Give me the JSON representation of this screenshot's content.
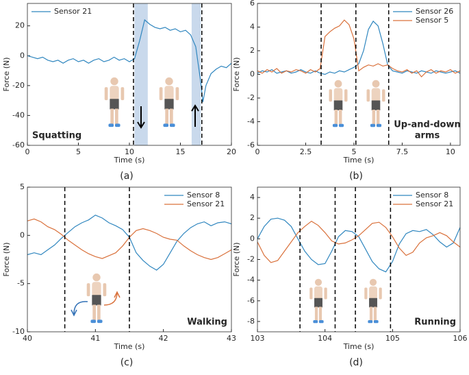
{
  "chart_data": [
    {
      "type": "line",
      "panel_label": "(a)",
      "xlabel": "Time (s)",
      "ylabel": "Force (N)",
      "annotation": [
        "Squatting"
      ],
      "annotation_position": "lower left",
      "legend": "upper left",
      "xlim": [
        0,
        20
      ],
      "xticks": [
        0,
        5,
        10,
        15,
        20
      ],
      "ylim": [
        -60,
        35
      ],
      "yticks": [
        -60,
        -40,
        -20,
        0,
        20
      ],
      "events": [
        10.4,
        17.1
      ],
      "shaded": [
        [
          10.5,
          11.8
        ],
        [
          16.1,
          17.0
        ]
      ],
      "x": [
        0,
        0.5,
        1,
        1.5,
        2,
        2.5,
        3,
        3.5,
        4,
        4.5,
        5,
        5.5,
        6,
        6.5,
        7,
        7.5,
        8,
        8.5,
        9,
        9.5,
        10,
        10.5,
        11,
        11.5,
        12,
        12.5,
        13,
        13.5,
        14,
        14.5,
        15,
        15.5,
        16,
        16.5,
        17,
        17.2,
        17.5,
        18,
        18.5,
        19,
        19.5,
        20
      ],
      "series": [
        {
          "name": "Sensor 21",
          "color": "#2f86bf",
          "values": [
            0,
            -1,
            -2,
            -1,
            -3,
            -4,
            -3,
            -5,
            -3,
            -2,
            -4,
            -3,
            -5,
            -3,
            -2,
            -4,
            -3,
            -1,
            -3,
            -2,
            -4,
            -2,
            10,
            24,
            21,
            19,
            18,
            19,
            17,
            18,
            16,
            17,
            14,
            6,
            -18,
            -31,
            -20,
            -12,
            -9,
            -7,
            -8,
            -5
          ]
        }
      ]
    },
    {
      "type": "line",
      "panel_label": "(b)",
      "xlabel": "Time (s)",
      "ylabel": "Force (N)",
      "annotation": [
        "Up-and-down",
        "arms"
      ],
      "annotation_position": "lower right",
      "legend": "upper right",
      "xlim": [
        0,
        10.5
      ],
      "xticks": [
        0,
        2.5,
        5,
        7.5,
        10
      ],
      "ylim": [
        -6,
        6
      ],
      "yticks": [
        -6,
        -4,
        -2,
        0,
        2,
        4,
        6
      ],
      "events": [
        3.3,
        5.1,
        6.8
      ],
      "shaded": [],
      "x": [
        0,
        0.25,
        0.5,
        0.75,
        1,
        1.25,
        1.5,
        1.75,
        2,
        2.25,
        2.5,
        2.75,
        3,
        3.25,
        3.5,
        3.75,
        4,
        4.25,
        4.5,
        4.75,
        5,
        5.25,
        5.5,
        5.75,
        6,
        6.25,
        6.5,
        6.75,
        7,
        7.25,
        7.5,
        7.75,
        8,
        8.25,
        8.5,
        8.75,
        9,
        9.25,
        9.5,
        9.75,
        10,
        10.25,
        10.5
      ],
      "series": [
        {
          "name": "Sensor 26",
          "color": "#2f86bf",
          "values": [
            0.1,
            0.3,
            0.2,
            0.4,
            0.1,
            0.2,
            0.3,
            0.1,
            0.2,
            0.4,
            0.2,
            0.1,
            0.3,
            0.1,
            0.0,
            0.2,
            0.1,
            0.3,
            0.2,
            0.4,
            0.6,
            0.9,
            2.0,
            3.8,
            4.5,
            4.1,
            2.6,
            0.8,
            0.3,
            0.2,
            0.1,
            0.3,
            0.2,
            0.1,
            0.3,
            0.2,
            0.1,
            0.3,
            0.2,
            0.1,
            0.2,
            0.3,
            0.1
          ]
        },
        {
          "name": "Sensor 5",
          "color": "#d9703a",
          "values": [
            0.3,
            0.1,
            0.4,
            0.2,
            0.5,
            0.1,
            0.3,
            0.2,
            0.4,
            0.3,
            0.1,
            0.4,
            0.2,
            0.5,
            3.2,
            3.6,
            3.9,
            4.1,
            4.6,
            4.2,
            3.0,
            0.3,
            0.6,
            0.8,
            0.7,
            0.9,
            0.7,
            0.8,
            0.5,
            0.3,
            0.2,
            0.4,
            0.1,
            0.3,
            -0.2,
            0.2,
            0.4,
            0.1,
            0.3,
            0.2,
            0.4,
            0.1,
            0.3
          ]
        }
      ]
    },
    {
      "type": "line",
      "panel_label": "(c)",
      "xlabel": "Time (s)",
      "ylabel": "Force (N)",
      "annotation": [
        "Walking"
      ],
      "annotation_position": "lower right",
      "legend": "upper right",
      "xlim": [
        40,
        43
      ],
      "xticks": [
        40,
        41,
        42,
        43
      ],
      "ylim": [
        -10,
        5
      ],
      "yticks": [
        -10,
        -5,
        0,
        5
      ],
      "events": [
        40.55,
        41.5
      ],
      "shaded": [],
      "x": [
        40,
        40.1,
        40.2,
        40.3,
        40.4,
        40.5,
        40.6,
        40.7,
        40.8,
        40.9,
        41,
        41.1,
        41.2,
        41.3,
        41.4,
        41.5,
        41.6,
        41.7,
        41.8,
        41.9,
        42,
        42.1,
        42.2,
        42.3,
        42.4,
        42.5,
        42.6,
        42.7,
        42.8,
        42.9,
        43
      ],
      "series": [
        {
          "name": "Sensor 8",
          "color": "#2f86bf",
          "values": [
            -2,
            -1.8,
            -2,
            -1.5,
            -1,
            -0.3,
            0.3,
            0.9,
            1.3,
            1.6,
            2.1,
            1.8,
            1.3,
            1,
            0.6,
            -0.2,
            -1.8,
            -2.6,
            -3.2,
            -3.6,
            -3,
            -1.8,
            -0.6,
            0.2,
            0.8,
            1.2,
            1.4,
            1,
            1.3,
            1.4,
            1.2
          ]
        },
        {
          "name": "Sensor 21",
          "color": "#d9703a",
          "values": [
            1.5,
            1.7,
            1.4,
            0.9,
            0.6,
            0.1,
            -0.5,
            -1,
            -1.5,
            -1.9,
            -2.2,
            -2.4,
            -2.1,
            -1.8,
            -1.1,
            -0.2,
            0.5,
            0.7,
            0.5,
            0.2,
            -0.2,
            -0.4,
            -0.5,
            -1.1,
            -1.6,
            -2,
            -2.3,
            -2.5,
            -2.3,
            -1.9,
            -1.5
          ]
        }
      ]
    },
    {
      "type": "line",
      "panel_label": "(d)",
      "xlabel": "Time (s)",
      "ylabel": "Force (N)",
      "annotation": [
        "Running"
      ],
      "annotation_position": "lower right",
      "legend": "upper right",
      "xlim": [
        103,
        106
      ],
      "xticks": [
        103,
        104,
        105,
        106
      ],
      "ylim": [
        -9,
        5
      ],
      "yticks": [
        -8,
        -6,
        -4,
        -2,
        0,
        2,
        4
      ],
      "events": [
        103.63,
        104.15,
        104.45,
        104.97
      ],
      "shaded": [],
      "x": [
        103,
        103.1,
        103.2,
        103.3,
        103.4,
        103.5,
        103.6,
        103.7,
        103.8,
        103.9,
        104,
        104.1,
        104.2,
        104.3,
        104.4,
        104.5,
        104.6,
        104.7,
        104.8,
        104.9,
        105,
        105.1,
        105.2,
        105.3,
        105.4,
        105.5,
        105.6,
        105.7,
        105.8,
        105.9,
        106
      ],
      "series": [
        {
          "name": "Sensor 8",
          "color": "#2f86bf",
          "values": [
            0,
            1.2,
            1.9,
            2,
            1.8,
            1.2,
            0,
            -1.2,
            -2,
            -2.5,
            -2.4,
            -1.2,
            0.2,
            0.8,
            0.7,
            0.2,
            -1,
            -2.2,
            -2.9,
            -3.2,
            -2.2,
            -0.5,
            0.5,
            0.8,
            0.7,
            0.9,
            0.4,
            -0.3,
            -0.8,
            -0.4,
            1.1
          ]
        },
        {
          "name": "Sensor 21",
          "color": "#d9703a",
          "values": [
            -0.3,
            -1.6,
            -2.3,
            -2.1,
            -1.2,
            -0.3,
            0.6,
            1.2,
            1.7,
            1.3,
            0.6,
            -0.2,
            -0.5,
            -0.4,
            -0.1,
            0.3,
            0.9,
            1.5,
            1.6,
            1.1,
            0.2,
            -0.9,
            -1.6,
            -1.3,
            -0.4,
            0.1,
            0.3,
            0.6,
            0.3,
            -0.3,
            -0.8
          ]
        }
      ]
    }
  ]
}
